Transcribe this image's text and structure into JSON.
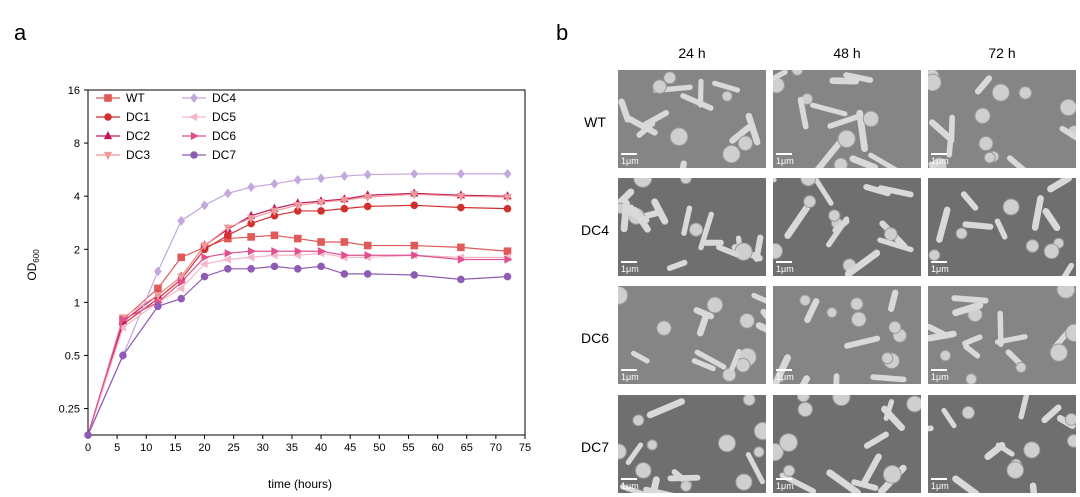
{
  "panel_a": {
    "letter": "a"
  },
  "panel_b": {
    "letter": "b",
    "columns": [
      "24 h",
      "48 h",
      "72 h"
    ],
    "rows": [
      "WT",
      "DC4",
      "DC6",
      "DC7"
    ],
    "scale_label": "1μm"
  },
  "chart_data": {
    "type": "line",
    "xlabel": "time (hours)",
    "ylabel_main": "OD",
    "ylabel_sub": "600",
    "y_scale": "log2",
    "xlim": [
      0,
      75
    ],
    "ylim": [
      0.177,
      16
    ],
    "x_ticks": [
      "0",
      "5",
      "10",
      "15",
      "20",
      "25",
      "30",
      "35",
      "40",
      "45",
      "50",
      "55",
      "60",
      "65",
      "70",
      "75"
    ],
    "y_ticks": [
      {
        "v": 0.25,
        "label": "0.25"
      },
      {
        "v": 0.5,
        "label": "0.5"
      },
      {
        "v": 1,
        "label": "1"
      },
      {
        "v": 2,
        "label": "2"
      },
      {
        "v": 4,
        "label": "4"
      },
      {
        "v": 8,
        "label": "8"
      },
      {
        "v": 16,
        "label": "16"
      }
    ],
    "legend_position": "top-left",
    "series": [
      {
        "name": "WT",
        "color": "#e05a5a",
        "marker": "square",
        "x": [
          0,
          6,
          12,
          16,
          20,
          24,
          28,
          32,
          36,
          40,
          44,
          48,
          56,
          64,
          72
        ],
        "y": [
          0.177,
          0.8,
          1.2,
          1.8,
          2.05,
          2.3,
          2.35,
          2.4,
          2.3,
          2.2,
          2.2,
          2.1,
          2.1,
          2.05,
          1.95
        ]
      },
      {
        "name": "DC1",
        "color": "#d32f2f",
        "marker": "circle",
        "x": [
          0,
          6,
          12,
          16,
          20,
          24,
          28,
          32,
          36,
          40,
          44,
          48,
          56,
          64,
          72
        ],
        "y": [
          0.177,
          0.75,
          1.05,
          1.35,
          2.0,
          2.4,
          2.8,
          3.1,
          3.3,
          3.3,
          3.4,
          3.5,
          3.55,
          3.45,
          3.4
        ]
      },
      {
        "name": "DC2",
        "color": "#c2185b",
        "marker": "triangle-up",
        "x": [
          0,
          6,
          12,
          16,
          20,
          24,
          28,
          32,
          36,
          40,
          44,
          48,
          56,
          64,
          72
        ],
        "y": [
          0.177,
          0.78,
          1.1,
          1.4,
          2.1,
          2.6,
          3.1,
          3.4,
          3.65,
          3.75,
          3.85,
          4.05,
          4.15,
          4.05,
          4.0
        ]
      },
      {
        "name": "DC3",
        "color": "#ef9a9a",
        "marker": "triangle-down",
        "x": [
          0,
          6,
          12,
          16,
          20,
          24,
          28,
          32,
          36,
          40,
          44,
          48,
          56,
          64,
          72
        ],
        "y": [
          0.177,
          0.82,
          1.1,
          1.4,
          2.1,
          2.65,
          3.0,
          3.3,
          3.55,
          3.7,
          3.8,
          3.95,
          4.1,
          4.0,
          3.95
        ]
      },
      {
        "name": "DC4",
        "color": "#c3a8dc",
        "marker": "diamond",
        "x": [
          0,
          6,
          12,
          16,
          20,
          24,
          28,
          32,
          36,
          40,
          44,
          48,
          56,
          64,
          72
        ],
        "y": [
          0.177,
          0.5,
          1.5,
          2.9,
          3.55,
          4.15,
          4.5,
          4.7,
          4.95,
          5.05,
          5.2,
          5.3,
          5.35,
          5.35,
          5.35
        ]
      },
      {
        "name": "DC5",
        "color": "#f4b8c8",
        "marker": "triangle-left",
        "x": [
          0,
          6,
          12,
          16,
          20,
          24,
          28,
          32,
          36,
          40,
          44,
          48,
          56,
          64,
          72
        ],
        "y": [
          0.177,
          0.72,
          1.0,
          1.2,
          1.65,
          1.75,
          1.8,
          1.85,
          1.85,
          1.9,
          1.8,
          1.8,
          1.85,
          1.8,
          1.8
        ]
      },
      {
        "name": "DC6",
        "color": "#e0508f",
        "marker": "triangle-right",
        "x": [
          0,
          6,
          12,
          16,
          20,
          24,
          28,
          32,
          36,
          40,
          44,
          48,
          56,
          64,
          72
        ],
        "y": [
          0.177,
          0.8,
          1.0,
          1.3,
          1.8,
          1.9,
          1.95,
          1.95,
          1.95,
          1.95,
          1.85,
          1.85,
          1.85,
          1.75,
          1.75
        ]
      },
      {
        "name": "DC7",
        "color": "#8e5bb5",
        "marker": "circle",
        "x": [
          0,
          6,
          12,
          16,
          20,
          24,
          28,
          32,
          36,
          40,
          44,
          48,
          56,
          64,
          72
        ],
        "y": [
          0.177,
          0.5,
          0.95,
          1.05,
          1.4,
          1.55,
          1.55,
          1.6,
          1.55,
          1.6,
          1.45,
          1.45,
          1.43,
          1.35,
          1.4
        ]
      }
    ]
  }
}
